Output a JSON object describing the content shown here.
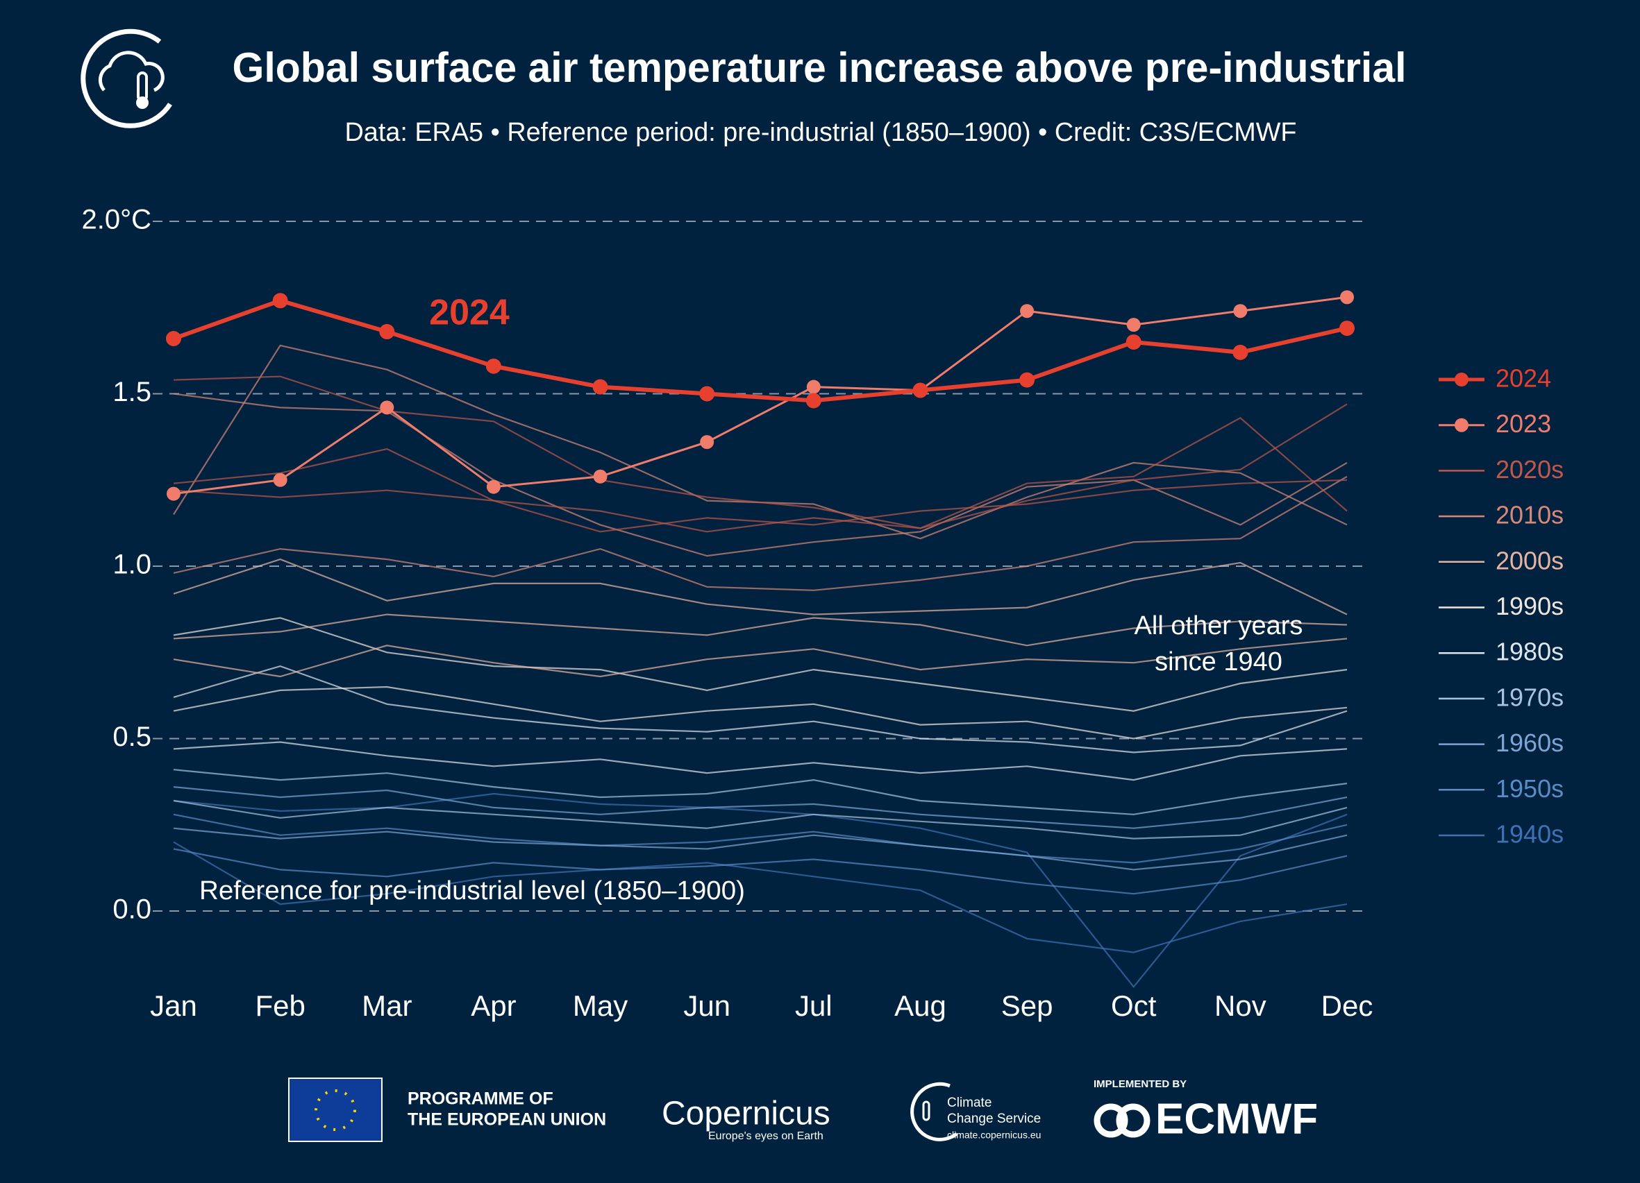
{
  "chart_data": {
    "type": "line",
    "title": "Global surface air temperature increase above pre-industrial",
    "subtitle": "Data: ERA5 • Reference period: pre-industrial (1850–1900) • Credit: C3S/ECMWF",
    "annotation_2024": "2024",
    "annotation_other": [
      "All other years",
      "since 1940"
    ],
    "annotation_reference": "Reference for pre-industrial level (1850–1900)",
    "categories": [
      "Jan",
      "Feb",
      "Mar",
      "Apr",
      "May",
      "Jun",
      "Jul",
      "Aug",
      "Sep",
      "Oct",
      "Nov",
      "Dec"
    ],
    "ylim": [
      -0.25,
      2.05
    ],
    "yticks": [
      {
        "value": 0,
        "label": "0.0"
      },
      0.5,
      {
        "value": 1,
        "label": "1.0"
      },
      1.5,
      {
        "value": 2,
        "label": "2.0°C"
      }
    ],
    "grid": true,
    "legend": "right",
    "series": [
      {
        "name": "2024",
        "color": "#e8402f",
        "values": [
          1.66,
          1.77,
          1.68,
          1.58,
          1.52,
          1.5,
          1.48,
          1.51,
          1.54,
          1.65,
          1.62,
          1.69
        ]
      },
      {
        "name": "2023",
        "color": "#f07c6c",
        "values": [
          1.21,
          1.25,
          1.46,
          1.23,
          1.26,
          1.36,
          1.52,
          1.51,
          1.74,
          1.7,
          1.74,
          1.78
        ]
      },
      {
        "name": "2020s",
        "color": "#c0574a",
        "lines": [
          [
            1.54,
            1.55,
            1.45,
            1.42,
            1.25,
            1.2,
            1.17,
            1.11,
            1.24,
            1.26,
            1.43,
            1.16
          ],
          [
            1.24,
            1.27,
            1.34,
            1.19,
            1.16,
            1.1,
            1.14,
            1.11,
            1.19,
            1.25,
            1.28,
            1.47
          ],
          [
            1.22,
            1.2,
            1.22,
            1.19,
            1.1,
            1.14,
            1.12,
            1.16,
            1.18,
            1.22,
            1.24,
            1.25
          ]
        ]
      },
      {
        "name": "2010s",
        "color": "#d98877",
        "lines": [
          [
            1.15,
            1.64,
            1.57,
            1.44,
            1.33,
            1.19,
            1.18,
            1.08,
            1.2,
            1.3,
            1.27,
            1.12
          ],
          [
            1.5,
            1.46,
            1.45,
            1.25,
            1.12,
            1.03,
            1.07,
            1.1,
            1.23,
            1.25,
            1.12,
            1.3
          ],
          [
            0.98,
            1.05,
            1.02,
            0.97,
            1.05,
            0.94,
            0.93,
            0.96,
            1.0,
            1.07,
            1.08,
            1.26
          ]
        ]
      },
      {
        "name": "2000s",
        "color": "#e8b3a3",
        "lines": [
          [
            0.92,
            1.02,
            0.9,
            0.95,
            0.95,
            0.89,
            0.86,
            0.87,
            0.88,
            0.96,
            1.01,
            0.86
          ],
          [
            0.79,
            0.81,
            0.86,
            0.84,
            0.82,
            0.8,
            0.85,
            0.83,
            0.77,
            0.82,
            0.84,
            0.83
          ],
          [
            0.73,
            0.68,
            0.77,
            0.72,
            0.68,
            0.73,
            0.76,
            0.7,
            0.73,
            0.72,
            0.76,
            0.79
          ]
        ]
      },
      {
        "name": "1990s",
        "color": "#f0e6e0",
        "lines": [
          [
            0.8,
            0.85,
            0.75,
            0.71,
            0.7,
            0.64,
            0.7,
            0.66,
            0.62,
            0.58,
            0.66,
            0.7
          ],
          [
            0.58,
            0.64,
            0.65,
            0.6,
            0.55,
            0.58,
            0.6,
            0.54,
            0.55,
            0.5,
            0.56,
            0.59
          ]
        ]
      },
      {
        "name": "1980s",
        "color": "#e0e6ee",
        "lines": [
          [
            0.62,
            0.71,
            0.6,
            0.56,
            0.53,
            0.52,
            0.55,
            0.5,
            0.49,
            0.46,
            0.48,
            0.58
          ],
          [
            0.47,
            0.49,
            0.45,
            0.42,
            0.44,
            0.4,
            0.43,
            0.4,
            0.42,
            0.38,
            0.45,
            0.47
          ]
        ]
      },
      {
        "name": "1970s",
        "color": "#a9c4e0",
        "lines": [
          [
            0.41,
            0.38,
            0.4,
            0.36,
            0.33,
            0.34,
            0.38,
            0.32,
            0.3,
            0.28,
            0.33,
            0.37
          ],
          [
            0.32,
            0.27,
            0.3,
            0.28,
            0.26,
            0.24,
            0.28,
            0.26,
            0.24,
            0.21,
            0.22,
            0.3
          ]
        ]
      },
      {
        "name": "1960s",
        "color": "#7ea6d4",
        "lines": [
          [
            0.36,
            0.33,
            0.35,
            0.3,
            0.28,
            0.3,
            0.31,
            0.28,
            0.26,
            0.24,
            0.27,
            0.33
          ],
          [
            0.24,
            0.21,
            0.23,
            0.2,
            0.19,
            0.18,
            0.22,
            0.19,
            0.16,
            0.12,
            0.15,
            0.22
          ]
        ]
      },
      {
        "name": "1950s",
        "color": "#5b8cc6",
        "lines": [
          [
            0.28,
            0.22,
            0.24,
            0.21,
            0.19,
            0.2,
            0.23,
            0.19,
            0.16,
            0.14,
            0.18,
            0.25
          ],
          [
            0.18,
            0.12,
            0.1,
            0.14,
            0.12,
            0.13,
            0.15,
            0.12,
            0.08,
            0.05,
            0.09,
            0.16
          ]
        ]
      },
      {
        "name": "1940s",
        "color": "#3f72b5",
        "lines": [
          [
            0.32,
            0.29,
            0.3,
            0.34,
            0.31,
            0.3,
            0.28,
            0.24,
            0.17,
            -0.22,
            0.16,
            0.28
          ],
          [
            0.2,
            0.02,
            0.05,
            0.1,
            0.12,
            0.14,
            0.1,
            0.06,
            -0.08,
            -0.12,
            -0.03,
            0.02
          ]
        ]
      }
    ]
  },
  "footer": {
    "eu": [
      "PROGRAMME OF",
      "THE EUROPEAN UNION"
    ],
    "copernicus": "Copernicus",
    "copernicus_tagline": "Europe's eyes on Earth",
    "c3s": [
      "Climate",
      "Change Service"
    ],
    "c3s_url": "climate.copernicus.eu",
    "implemented_by": "IMPLEMENTED BY",
    "ecmwf": "ECMWF"
  }
}
